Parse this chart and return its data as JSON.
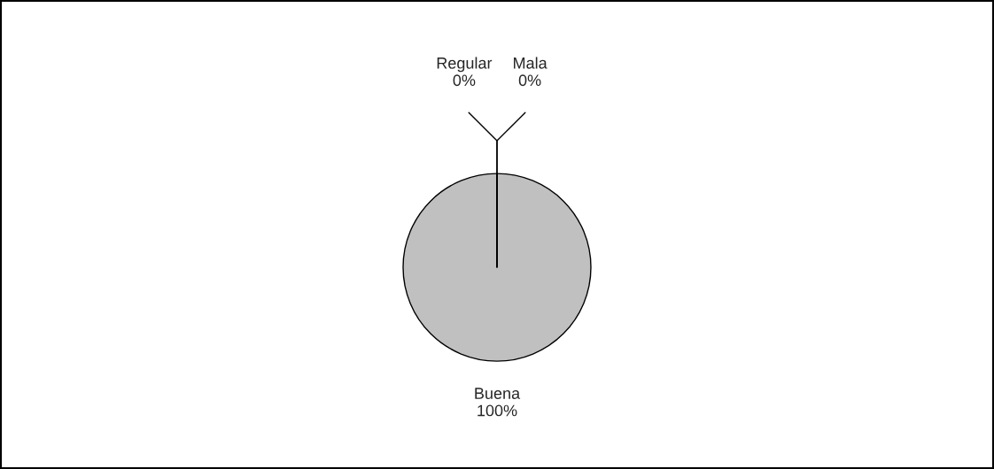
{
  "chart_data": {
    "type": "pie",
    "categories": [
      "Buena",
      "Regular",
      "Mala"
    ],
    "values": [
      100,
      0,
      0
    ],
    "colors": [
      "#c0c0c0",
      "#808080",
      "#404040"
    ],
    "value_labels": [
      "100%",
      "0%",
      "0%"
    ],
    "legend": false
  }
}
